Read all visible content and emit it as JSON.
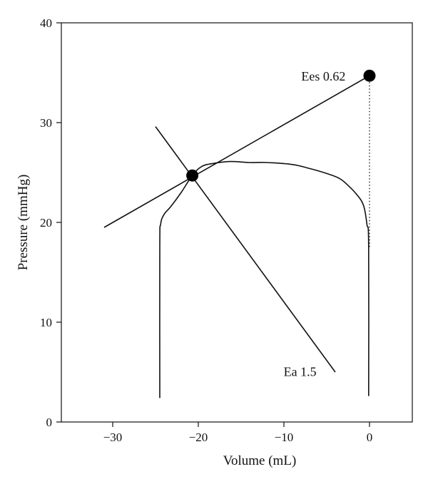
{
  "chart_data": {
    "type": "line",
    "title": "",
    "xlabel": "Volume (mL)",
    "ylabel": "Pressure (mmHg)",
    "xlim": [
      -36,
      5
    ],
    "ylim": [
      0,
      40
    ],
    "xticks": [
      -30,
      -20,
      -10,
      0
    ],
    "xtick_labels": [
      "−30",
      "−20",
      "−10",
      "0"
    ],
    "yticks": [
      0,
      10,
      20,
      30,
      40
    ],
    "ytick_labels": [
      "0",
      "10",
      "20",
      "30",
      "40"
    ],
    "grid": false,
    "legend": "none",
    "series": [
      {
        "kind": "pv-loop",
        "x": [
          -24.5,
          -24.5,
          -24.4,
          -24.0,
          -23.2,
          -22.0,
          -20.7,
          -19.6,
          -18.3,
          -16.3,
          -14.0,
          -12.0,
          -9.0,
          -7.0,
          -5.0,
          -3.5,
          -2.5,
          -1.5,
          -0.7,
          -0.3,
          -0.1,
          -0.1
        ],
        "y": [
          2.4,
          17.5,
          19.8,
          20.8,
          21.6,
          23.0,
          24.7,
          25.6,
          25.9,
          26.1,
          26.0,
          26.0,
          25.8,
          25.4,
          24.9,
          24.4,
          23.7,
          22.8,
          21.7,
          19.8,
          17.5,
          2.6
        ]
      },
      {
        "kind": "line",
        "label": "Ees 0.62",
        "x": [
          -31.0,
          0.0
        ],
        "y": [
          19.5,
          34.7
        ]
      },
      {
        "kind": "line",
        "label": "Ea 1.5",
        "x": [
          -25.0,
          -4.0
        ],
        "y": [
          29.6,
          5.0
        ]
      },
      {
        "kind": "dotted",
        "x": [
          0.0,
          0.0
        ],
        "y": [
          34.7,
          17.5
        ]
      },
      {
        "kind": "points",
        "x": [
          -20.7,
          0.0
        ],
        "y": [
          24.7,
          34.7
        ]
      }
    ],
    "annotations": [
      {
        "text": "Ees 0.62",
        "x": -2.8,
        "y": 34.7
      },
      {
        "text": "Ea 1.5",
        "x": -6.2,
        "y": 5.1
      }
    ]
  }
}
